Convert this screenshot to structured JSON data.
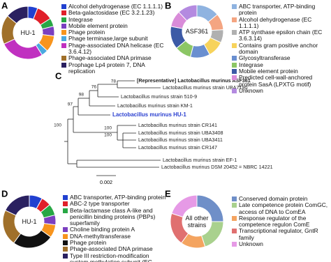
{
  "chart_data": [
    {
      "type": "pie",
      "panel": "A",
      "center_label": "HU-1",
      "categories": [
        "Alcohol dehydrogenase (EC 1.1.1.1)",
        "Beta-galactosidase (EC 3.2.1.23)",
        "Integrase",
        "Mobile element protein",
        "Phage protein",
        "Phage terminase,large subunit",
        "Phage-associated DNA helicase (EC 3.6.4.12)",
        "Phage-associated DNA primase",
        "Prophage Lp4 protein 7, DNA replication"
      ],
      "values": [
        6,
        10,
        5,
        6,
        10,
        4,
        27,
        18,
        14
      ],
      "colors": [
        "#2140d0",
        "#e0202a",
        "#28a745",
        "#7b3fc0",
        "#f7941d",
        "#4aa8e0",
        "#c030c0",
        "#a0702a",
        "#2a2060"
      ]
    },
    {
      "type": "pie",
      "panel": "B",
      "center_label": "ASF361",
      "categories": [
        "ABC transporter, ATP-binding protein",
        "Alcohol dehydrogenase (EC 1.1.1.1)",
        "ATP synthase epsilon chain (EC 3.6.3.14)",
        "Contains gram positive anchor domain",
        "Glycosyltransferase",
        "Integrase",
        "Mobile element protein",
        "Predicted cell-wall-anchored protein SasA (LPXTG motif)",
        "Unknown"
      ],
      "values": [
        14,
        10,
        8,
        10,
        12,
        10,
        14,
        10,
        12
      ],
      "colors": [
        "#8fb3e0",
        "#f4a582",
        "#b0b0b0",
        "#f7d35c",
        "#6a8fd0",
        "#8cc665",
        "#3c5aa6",
        "#d98cd9",
        "#b48ae0"
      ]
    },
    {
      "type": "pie",
      "panel": "D",
      "center_label": "HU-1",
      "categories": [
        "ABC transporter, ATP-binding protein",
        "ABC-2 type transporter",
        "Beta-lactamase class A-like and penicillin binding proteins (PBPs) superfamily",
        "Choline binding protein A",
        "DNA-methyltransferase",
        "Phage protein",
        "Phage-associated DNA primase",
        "Type III restriction-modification system methylation subunit (EC 2.1.1.72)"
      ],
      "values": [
        8,
        6,
        7,
        6,
        8,
        25,
        22,
        18
      ],
      "colors": [
        "#2140d0",
        "#e0202a",
        "#28a745",
        "#7b3fc0",
        "#f7941d",
        "#111111",
        "#a0702a",
        "#2a2060"
      ]
    },
    {
      "type": "pie",
      "panel": "E",
      "center_label": "All other strains",
      "categories": [
        "Conserved domain protein",
        "Late competence protein ComGC, access of DNA to ComEA",
        "Response regulator of the competence regulon ComE",
        "Transcriptional regulator, GntR family",
        "Unknown"
      ],
      "values": [
        25,
        20,
        15,
        20,
        20
      ],
      "colors": [
        "#6f8fc8",
        "#a9d18e",
        "#f4a460",
        "#e07070",
        "#e69ae6"
      ]
    }
  ],
  "tree": {
    "panel": "C",
    "leaves": [
      "[Representative] Lactobacillus murinus ASF361",
      "Lactobacillus murinus strain UBA7190",
      "Lactobacillus murinus strain 510-9",
      "Lactobacillus murinus strain KM-1",
      "Lactobacillus murinus HU-1",
      "Lactobacillus murinus strain CR141",
      "Lactobacillus murinus strain UBA3408",
      "Lactobacillus murinus strain UBA3411",
      "Lactobacillus murinus strain CR147",
      "Lactobacillus murinus strain EF-1",
      "Lactobacillus murinus DSM 20452 = NBRC 14221"
    ],
    "bootstraps": [
      78,
      76,
      98,
      97,
      100,
      100,
      100
    ],
    "scale_label": "0.002"
  }
}
